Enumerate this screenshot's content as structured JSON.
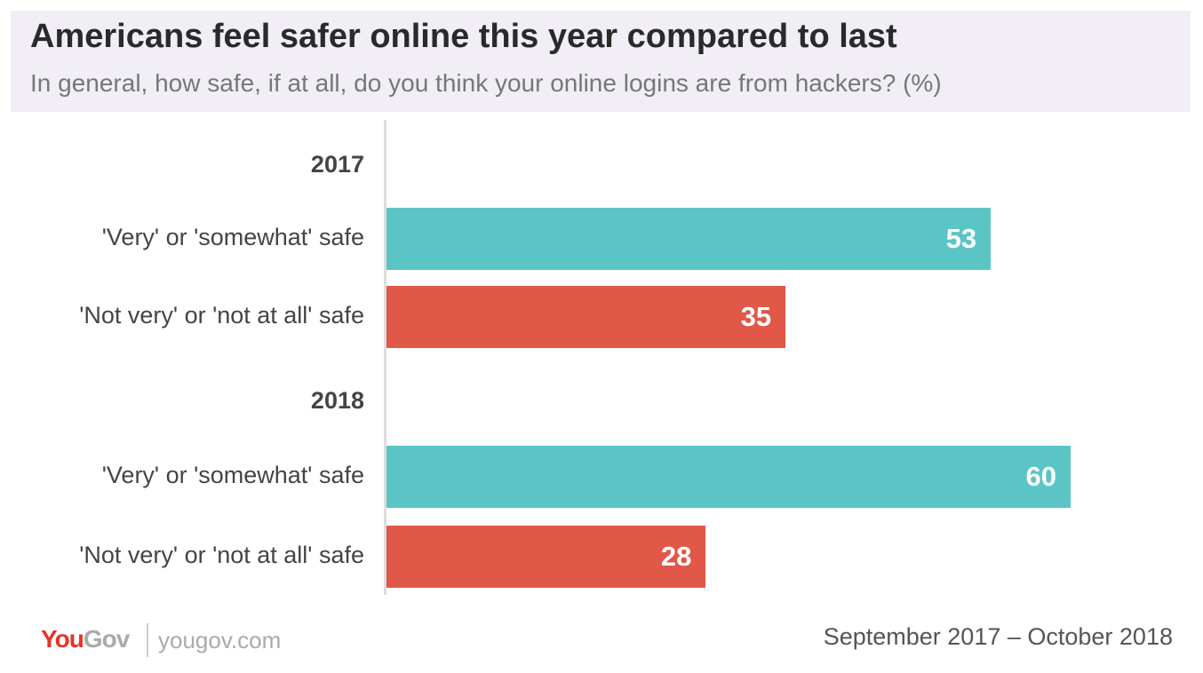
{
  "header": {
    "title": "Americans feel safer online this year compared to last",
    "subtitle": "In general, how safe, if at all, do you think your online logins are from hackers? (%)"
  },
  "chart_data": {
    "type": "bar",
    "orientation": "horizontal",
    "groups": [
      {
        "label": "2017",
        "categories": [
          "'Very' or 'somewhat' safe",
          "'Not very' or 'not at all' safe"
        ],
        "values": [
          53,
          35
        ]
      },
      {
        "label": "2018",
        "categories": [
          "'Very' or 'somewhat' safe",
          "'Not very' or 'not at all' safe"
        ],
        "values": [
          60,
          28
        ]
      }
    ],
    "colors": [
      "#5bc5c5",
      "#e15748"
    ],
    "xlim": [
      0,
      100
    ],
    "grid": false
  },
  "footer": {
    "logo_you": "You",
    "logo_gov": "Gov",
    "site": "yougov.com",
    "date_range": "September 2017 – October 2018"
  }
}
